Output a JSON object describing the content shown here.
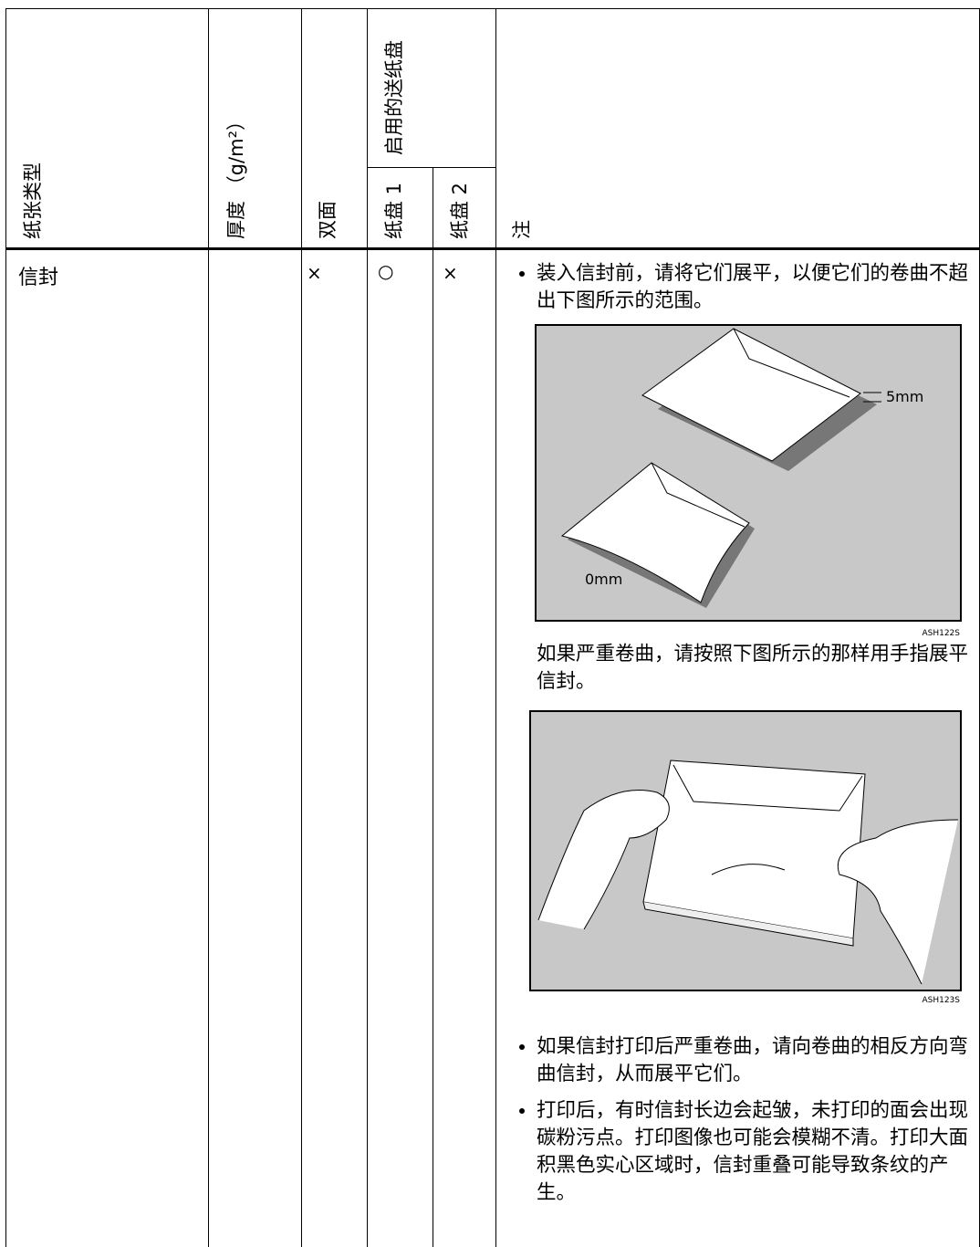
{
  "table": {
    "header": {
      "paper_type": "纸张类型",
      "thickness": "厚度 （g/m²）",
      "duplex": "双面",
      "trays_group": "启用的送纸盘",
      "tray1": "纸盘 1",
      "tray2": "纸盘 2",
      "notes": "注"
    },
    "rows": [
      {
        "paper_type": "信封",
        "duplex": "×",
        "tray1": "○",
        "tray2": "×",
        "notes": {
          "bullet1": "装入信封前，请将它们展平，以便它们的卷曲不超出下图所示的范围。",
          "figure1": {
            "label_top": "5mm",
            "label_bottom": "0mm",
            "code": "ASH122S"
          },
          "text2": "如果严重卷曲，请按照下图所示的那样用手指展平信封。",
          "figure2": {
            "code": "ASH123S"
          },
          "bullet2": "如果信封打印后严重卷曲，请向卷曲的相反方向弯曲信封，从而展平它们。",
          "bullet3": "打印后，有时信封长边会起皱，未打印的面会出现碳粉污点。打印图像也可能会模糊不清。打印大面积黑色实心区域时，信封重叠可能导致条纹的产生。"
        }
      }
    ]
  }
}
